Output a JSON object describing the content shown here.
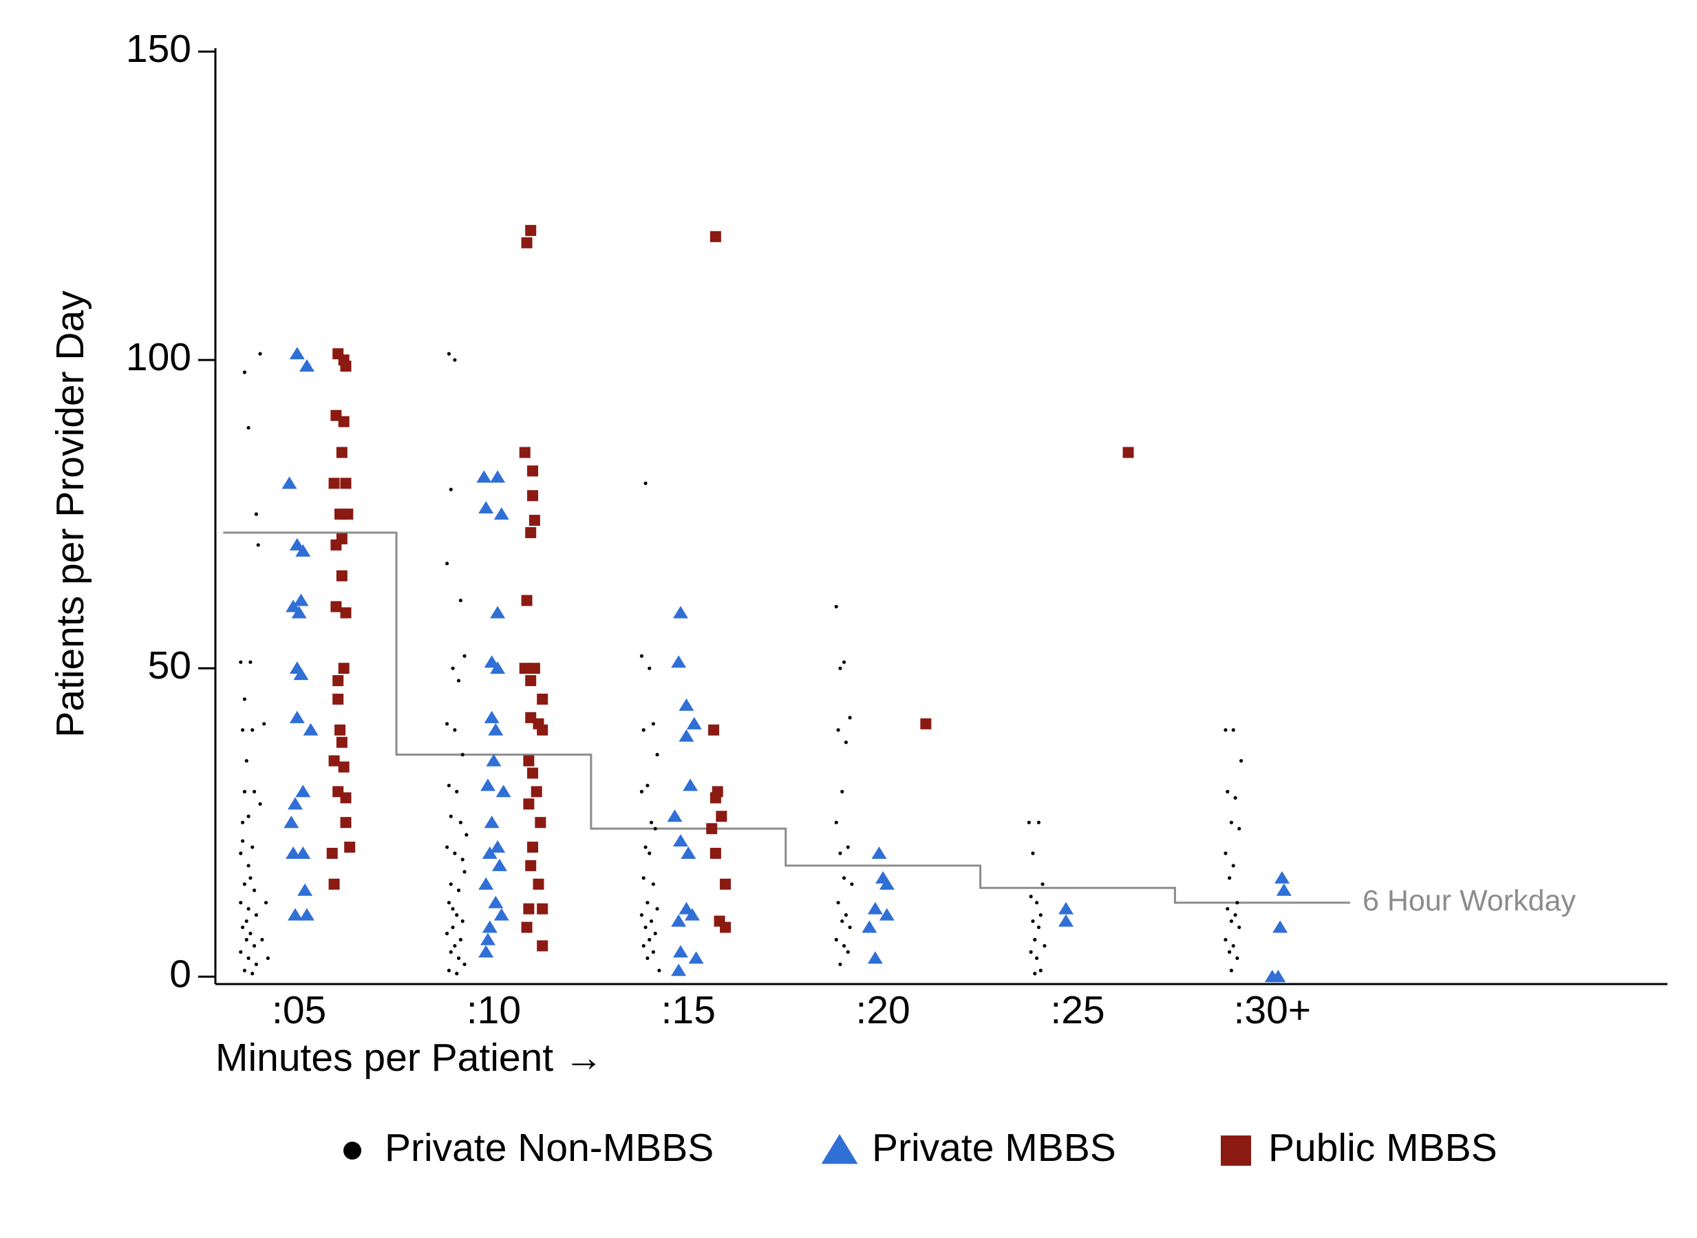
{
  "chart_data": {
    "type": "scatter",
    "ylabel": "Patients per Provider Day",
    "xlabel": "Minutes per Patient →",
    "xlim": [
      0.57,
      8.03
    ],
    "ylim": [
      -1.2,
      150
    ],
    "xticks": [
      {
        "value": 1,
        "label": ":05"
      },
      {
        "value": 2,
        "label": ":10"
      },
      {
        "value": 3,
        "label": ":15"
      },
      {
        "value": 4,
        "label": ":20"
      },
      {
        "value": 5,
        "label": ":25"
      },
      {
        "value": 6,
        "label": ":30+"
      }
    ],
    "yticks": [
      0,
      50,
      100,
      150
    ],
    "grid": false,
    "legend": "bottom",
    "reference_line": {
      "label": "6 Hour Workday",
      "color": "#8c8c8c",
      "x": [
        0.61,
        1.5,
        1.5,
        2.5,
        2.5,
        3.5,
        3.5,
        4.5,
        4.5,
        5.5,
        5.5,
        6.4
      ],
      "y": [
        72,
        72,
        36,
        36,
        24,
        24,
        18,
        18,
        14.4,
        14.4,
        12,
        12
      ]
    },
    "series": [
      {
        "name": "Private Non-MBBS",
        "color": "#000000",
        "marker": "circle",
        "x": [
          0.72,
          0.8,
          0.74,
          0.78,
          0.79,
          0.7,
          0.75,
          0.72,
          0.71,
          0.76,
          0.73,
          0.72,
          0.77,
          0.74,
          0.71,
          0.76,
          0.7,
          0.74,
          0.72,
          0.77,
          0.7,
          0.74,
          0.78,
          0.71,
          0.75,
          0.73,
          0.77,
          0.7,
          0.74,
          0.78,
          0.72,
          0.76,
          0.73,
          0.75,
          0.71,
          0.83,
          0.81,
          0.84,
          0.8,
          0.82,
          1.77,
          1.8,
          1.78,
          1.76,
          1.83,
          1.85,
          1.79,
          1.82,
          1.76,
          1.8,
          1.84,
          1.77,
          1.81,
          1.78,
          1.83,
          1.76,
          1.8,
          1.85,
          1.78,
          1.82,
          1.77,
          1.81,
          1.84,
          1.79,
          1.76,
          1.83,
          1.8,
          1.78,
          1.82,
          1.85,
          1.77,
          1.81,
          1.79,
          1.84,
          1.86,
          2.78,
          2.76,
          2.8,
          2.82,
          2.77,
          2.84,
          2.79,
          2.76,
          2.81,
          2.83,
          2.78,
          2.8,
          2.77,
          2.82,
          2.79,
          2.84,
          2.76,
          2.81,
          2.78,
          2.83,
          2.8,
          2.77,
          2.82,
          2.79,
          2.85,
          3.76,
          3.8,
          3.78,
          3.83,
          3.77,
          3.81,
          3.79,
          3.76,
          3.82,
          3.78,
          3.8,
          3.84,
          3.77,
          3.81,
          3.79,
          3.83,
          3.76,
          3.8,
          3.82,
          3.78,
          4.75,
          4.8,
          4.77,
          4.82,
          4.76,
          4.79,
          4.81,
          4.77,
          4.8,
          4.78,
          4.83,
          4.76,
          4.79,
          4.81,
          4.78,
          5.76,
          5.8,
          5.84,
          5.77,
          5.81,
          5.79,
          5.83,
          5.76,
          5.8,
          5.78,
          5.82,
          5.77,
          5.81,
          5.79,
          5.83,
          5.76,
          5.8,
          5.78,
          5.82,
          5.79
        ],
        "y": [
          98,
          101,
          89,
          75,
          70,
          51,
          51,
          45,
          40,
          40,
          35,
          30,
          30,
          26,
          25,
          21,
          20,
          18,
          15,
          14,
          12,
          11,
          10,
          8,
          7,
          6,
          5,
          4,
          3,
          2,
          1,
          0.5,
          9,
          16,
          22,
          12,
          6,
          3,
          28,
          41,
          101,
          100,
          79,
          67,
          61,
          52,
          50,
          48,
          41,
          40,
          36,
          31,
          30,
          26,
          25,
          21,
          20,
          17,
          15,
          14,
          12,
          10,
          9,
          8,
          7,
          6,
          5,
          4,
          3,
          2,
          1,
          0.5,
          11,
          19,
          23,
          80,
          52,
          50,
          41,
          40,
          36,
          31,
          30,
          25,
          24,
          21,
          20,
          16,
          15,
          12,
          11,
          10,
          9,
          8,
          7,
          6,
          5,
          4,
          3,
          1,
          60,
          51,
          50,
          42,
          40,
          38,
          30,
          25,
          21,
          20,
          16,
          15,
          12,
          10,
          9,
          8,
          6,
          5,
          4,
          2,
          25,
          25,
          20,
          15,
          13,
          12,
          10,
          9,
          8,
          6,
          5,
          4,
          3,
          1,
          0.5,
          40,
          40,
          35,
          30,
          29,
          25,
          24,
          20,
          18,
          16,
          12,
          11,
          10,
          9,
          8,
          6,
          5,
          4,
          3,
          1
        ]
      },
      {
        "name": "Private MBBS",
        "color": "#2f6fd6",
        "marker": "triangle",
        "x": [
          0.99,
          1.04,
          0.95,
          0.99,
          1.02,
          1.01,
          0.97,
          1.0,
          0.99,
          1.01,
          0.99,
          1.06,
          1.02,
          0.98,
          0.96,
          0.97,
          1.02,
          1.03,
          0.98,
          1.04,
          1.95,
          2.02,
          1.96,
          2.04,
          2.02,
          1.99,
          2.02,
          1.99,
          2.01,
          2.0,
          1.97,
          2.05,
          1.99,
          2.02,
          1.98,
          2.03,
          1.96,
          2.01,
          2.04,
          1.98,
          1.97,
          1.96,
          2.96,
          2.95,
          2.99,
          3.03,
          2.99,
          3.01,
          2.93,
          2.96,
          3.0,
          2.99,
          3.02,
          2.95,
          2.96,
          3.04,
          2.95,
          3.98,
          4.0,
          4.02,
          3.96,
          4.02,
          3.93,
          3.96,
          4.94,
          4.94,
          6.05,
          6.06,
          6.04,
          6.0,
          6.03
        ],
        "y": [
          101,
          99,
          80,
          70,
          69,
          61,
          60,
          59,
          50,
          49,
          42,
          40,
          30,
          28,
          25,
          20,
          20,
          14,
          10,
          10,
          81,
          81,
          76,
          75,
          59,
          51,
          50,
          42,
          40,
          35,
          31,
          30,
          25,
          21,
          20,
          18,
          15,
          12,
          10,
          8,
          6,
          4,
          59,
          51,
          44,
          41,
          39,
          31,
          26,
          22,
          20,
          11,
          10,
          9,
          4,
          3,
          1,
          20,
          16,
          15,
          11,
          10,
          8,
          3,
          11,
          9,
          16,
          14,
          8,
          0,
          0
        ]
      },
      {
        "name": "Public MBBS",
        "color": "#8b1a12",
        "marker": "square",
        "x": [
          1.2,
          1.23,
          1.24,
          1.19,
          1.23,
          1.22,
          1.18,
          1.24,
          1.21,
          1.25,
          1.19,
          1.22,
          1.22,
          1.19,
          1.24,
          1.23,
          1.2,
          1.2,
          1.21,
          1.22,
          1.18,
          1.23,
          1.2,
          1.24,
          1.24,
          1.26,
          1.17,
          1.18,
          2.19,
          2.17,
          2.16,
          2.2,
          2.2,
          2.21,
          2.19,
          2.17,
          2.16,
          2.21,
          2.19,
          2.25,
          2.19,
          2.23,
          2.25,
          2.18,
          2.2,
          2.22,
          2.18,
          2.24,
          2.2,
          2.19,
          2.23,
          2.18,
          2.25,
          2.17,
          2.25,
          3.14,
          3.13,
          3.15,
          3.14,
          3.17,
          3.12,
          3.14,
          3.19,
          3.16,
          3.19,
          4.22,
          5.26
        ],
        "y": [
          101,
          100,
          99,
          91,
          90,
          85,
          80,
          80,
          75,
          75,
          70,
          71,
          65,
          60,
          59,
          50,
          48,
          45,
          40,
          38,
          35,
          34,
          30,
          29,
          25,
          21,
          20,
          15,
          121,
          119,
          85,
          82,
          78,
          74,
          72,
          61,
          50,
          50,
          48,
          45,
          42,
          41,
          40,
          35,
          33,
          30,
          28,
          25,
          21,
          18,
          15,
          11,
          11,
          8,
          5,
          120,
          40,
          30,
          29,
          26,
          24,
          20,
          15,
          9,
          8,
          41,
          85
        ]
      }
    ]
  }
}
